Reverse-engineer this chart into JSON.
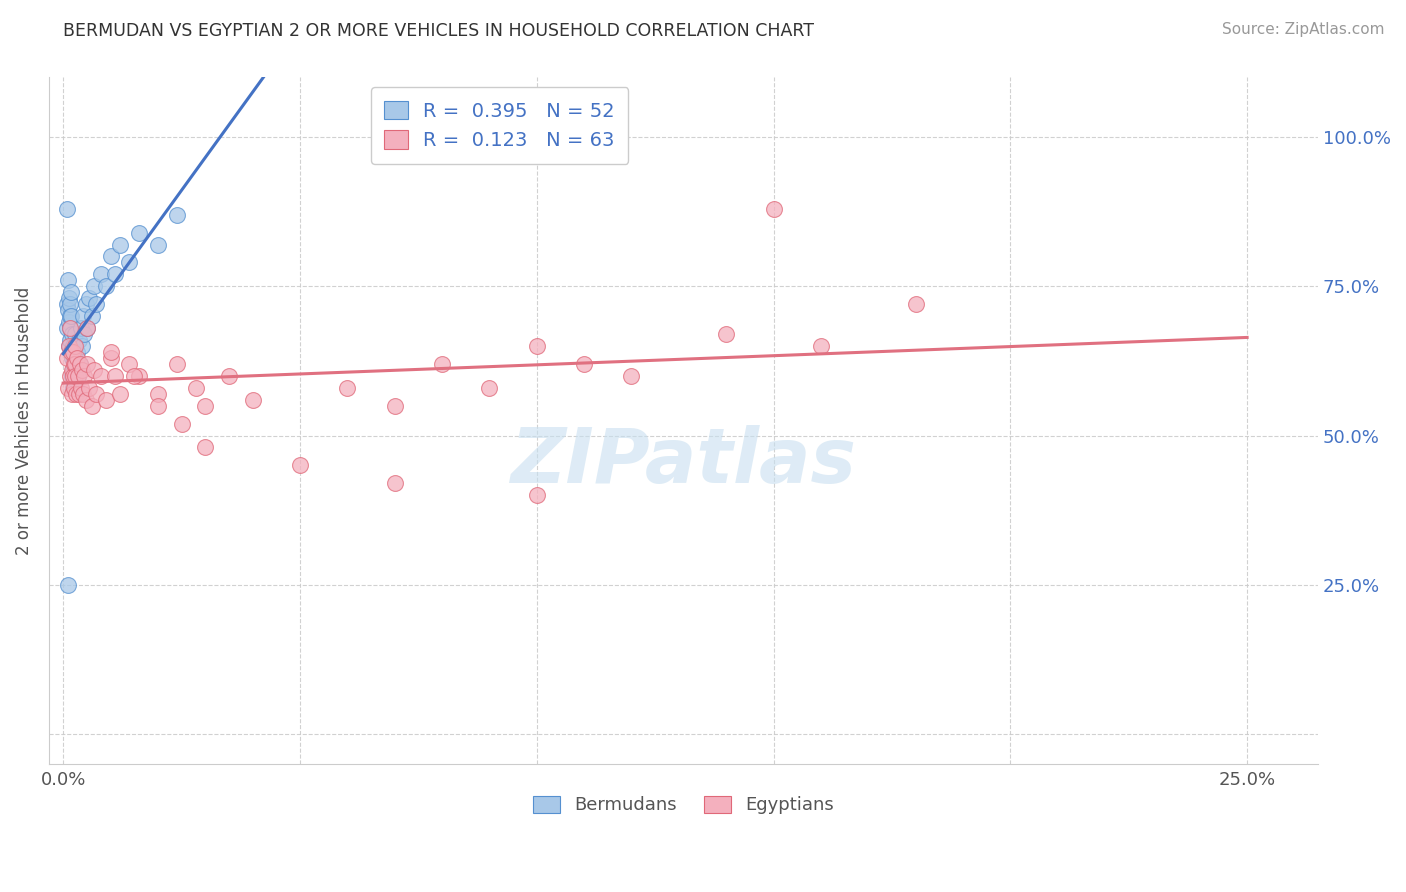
{
  "title": "BERMUDAN VS EGYPTIAN 2 OR MORE VEHICLES IN HOUSEHOLD CORRELATION CHART",
  "source": "Source: ZipAtlas.com",
  "ylabel": "2 or more Vehicles in Household",
  "bermudan_color": "#a8c8e8",
  "egyptian_color": "#f4b0be",
  "bermudan_edge_color": "#5590d0",
  "egyptian_edge_color": "#e06878",
  "bermudan_line_color": "#4472c4",
  "egyptian_line_color": "#e07080",
  "R_bermudan": 0.395,
  "N_bermudan": 52,
  "R_egyptian": 0.123,
  "N_egyptian": 63,
  "legend_labels": [
    "Bermudans",
    "Egyptians"
  ],
  "tick_label_color": "#4472c4",
  "watermark_color": "#c8dff0",
  "x_tick_positions": [
    0.0,
    0.05,
    0.1,
    0.15,
    0.2,
    0.25
  ],
  "x_tick_labels": [
    "0.0%",
    "",
    "",
    "",
    "",
    "25.0%"
  ],
  "y_tick_positions": [
    0.0,
    0.25,
    0.5,
    0.75,
    1.0
  ],
  "y_tick_labels": [
    "",
    "25.0%",
    "50.0%",
    "75.0%",
    "100.0%"
  ],
  "xlim": [
    -0.003,
    0.265
  ],
  "ylim": [
    -0.05,
    1.1
  ],
  "bermudan_x": [
    0.0008,
    0.0008,
    0.001,
    0.001,
    0.0012,
    0.0012,
    0.0012,
    0.0014,
    0.0014,
    0.0015,
    0.0015,
    0.0016,
    0.0016,
    0.0018,
    0.0018,
    0.0018,
    0.002,
    0.002,
    0.002,
    0.0022,
    0.0022,
    0.0024,
    0.0024,
    0.0025,
    0.0026,
    0.0028,
    0.0028,
    0.003,
    0.0032,
    0.0034,
    0.0036,
    0.0038,
    0.004,
    0.0042,
    0.0045,
    0.0048,
    0.005,
    0.0055,
    0.006,
    0.0065,
    0.007,
    0.008,
    0.009,
    0.01,
    0.011,
    0.012,
    0.014,
    0.016,
    0.02,
    0.024,
    0.0008,
    0.001
  ],
  "bermudan_y": [
    0.72,
    0.68,
    0.76,
    0.71,
    0.73,
    0.69,
    0.65,
    0.7,
    0.66,
    0.72,
    0.68,
    0.74,
    0.7,
    0.67,
    0.63,
    0.6,
    0.65,
    0.61,
    0.58,
    0.63,
    0.59,
    0.67,
    0.63,
    0.6,
    0.65,
    0.62,
    0.58,
    0.64,
    0.6,
    0.66,
    0.62,
    0.68,
    0.65,
    0.7,
    0.67,
    0.72,
    0.68,
    0.73,
    0.7,
    0.75,
    0.72,
    0.77,
    0.75,
    0.8,
    0.77,
    0.82,
    0.79,
    0.84,
    0.82,
    0.87,
    0.88,
    0.25
  ],
  "egyptian_x": [
    0.0008,
    0.001,
    0.0012,
    0.0014,
    0.0015,
    0.0016,
    0.0018,
    0.0018,
    0.002,
    0.002,
    0.0022,
    0.0022,
    0.0024,
    0.0025,
    0.0026,
    0.0028,
    0.003,
    0.0032,
    0.0034,
    0.0036,
    0.0038,
    0.004,
    0.0042,
    0.0045,
    0.0048,
    0.005,
    0.0055,
    0.006,
    0.0065,
    0.007,
    0.008,
    0.009,
    0.01,
    0.011,
    0.012,
    0.014,
    0.016,
    0.02,
    0.024,
    0.028,
    0.03,
    0.035,
    0.04,
    0.06,
    0.07,
    0.08,
    0.09,
    0.1,
    0.11,
    0.12,
    0.14,
    0.16,
    0.18,
    0.005,
    0.01,
    0.015,
    0.02,
    0.025,
    0.03,
    0.05,
    0.07,
    0.1,
    0.15
  ],
  "egyptian_y": [
    0.63,
    0.58,
    0.65,
    0.6,
    0.68,
    0.64,
    0.61,
    0.57,
    0.64,
    0.6,
    0.62,
    0.58,
    0.65,
    0.62,
    0.6,
    0.57,
    0.63,
    0.6,
    0.57,
    0.62,
    0.58,
    0.61,
    0.57,
    0.6,
    0.56,
    0.62,
    0.58,
    0.55,
    0.61,
    0.57,
    0.6,
    0.56,
    0.63,
    0.6,
    0.57,
    0.62,
    0.6,
    0.57,
    0.62,
    0.58,
    0.55,
    0.6,
    0.56,
    0.58,
    0.55,
    0.62,
    0.58,
    0.65,
    0.62,
    0.6,
    0.67,
    0.65,
    0.72,
    0.68,
    0.64,
    0.6,
    0.55,
    0.52,
    0.48,
    0.45,
    0.42,
    0.4,
    0.88
  ]
}
